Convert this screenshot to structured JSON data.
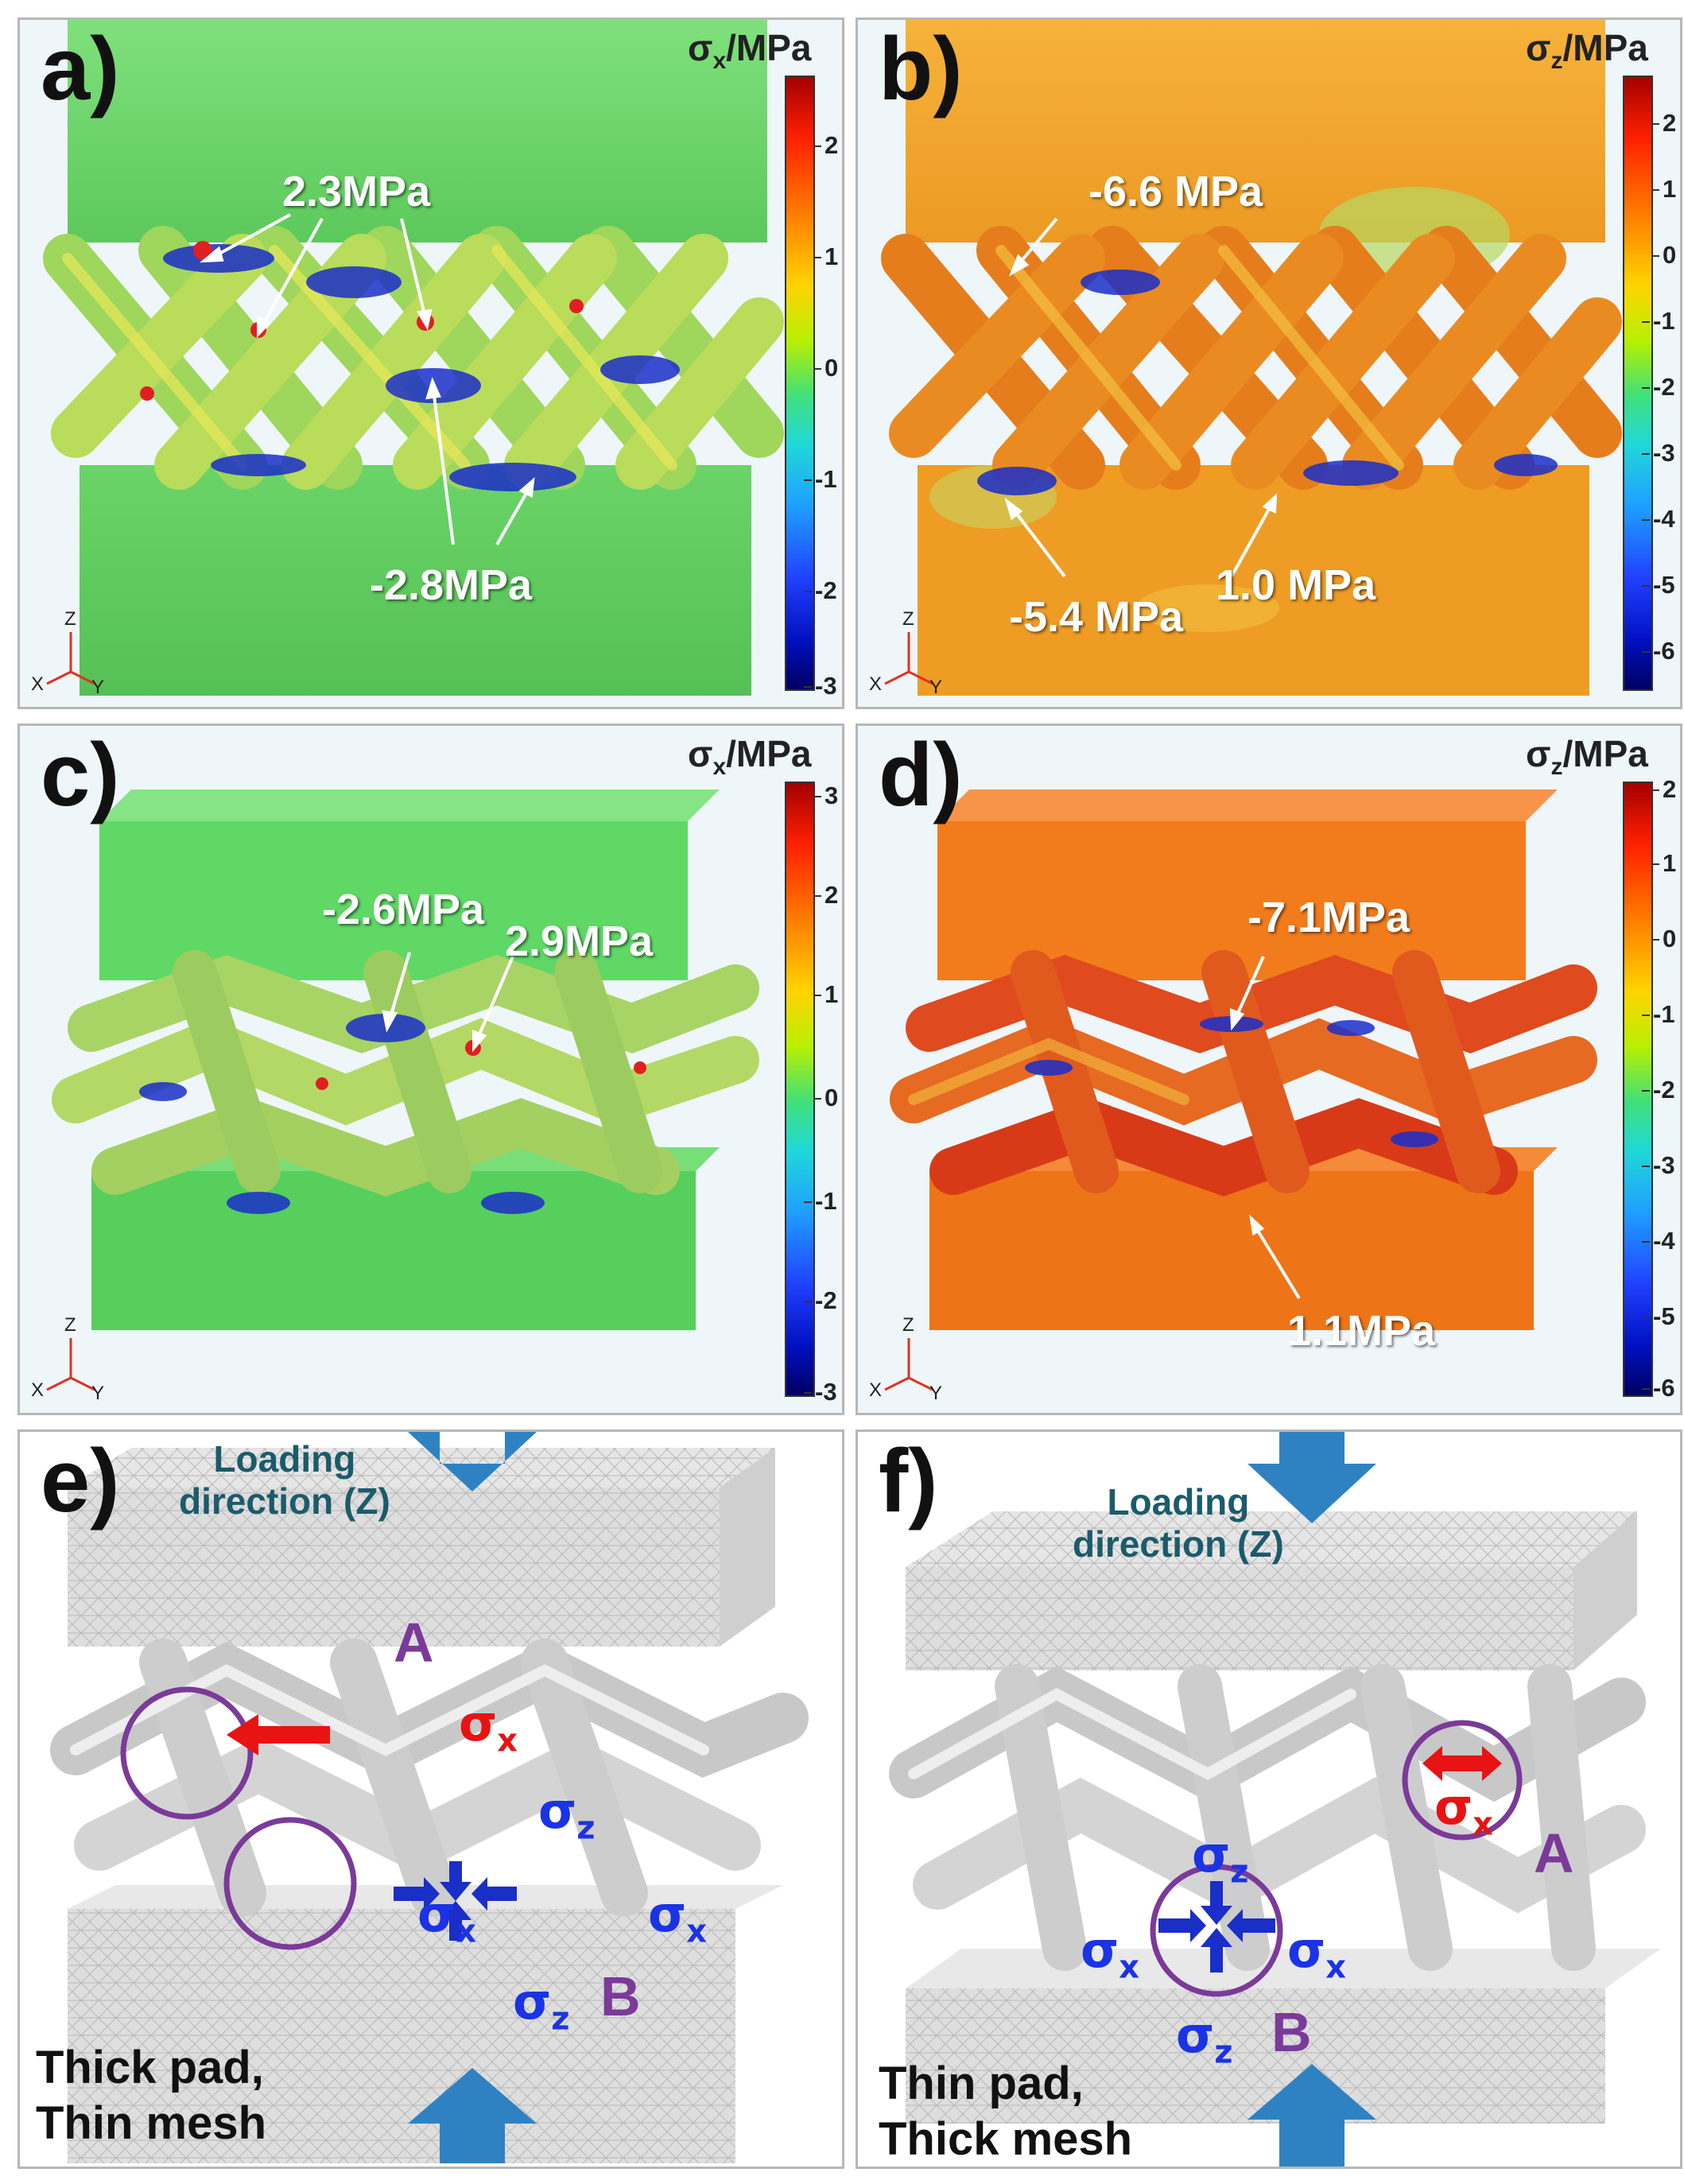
{
  "panels": [
    {
      "label": "a)",
      "colorbar_title": "σx/MPa",
      "colorbar_base": "σ",
      "colorbar_sub": "x",
      "colorbar_unit": "/MPa",
      "colorbar_ticks": [
        "2",
        "1",
        "0",
        "-1",
        "-2",
        "-3"
      ],
      "annotations": [
        "2.3MPa",
        "-2.8MPa"
      ],
      "axes": {
        "z": "Z",
        "x": "X",
        "y": "Y"
      },
      "colors": {
        "top": "#6bd66a",
        "bottom": "#66d064",
        "lattice": "#a3d85a"
      }
    },
    {
      "label": "b)",
      "colorbar_title": "σz/MPa",
      "colorbar_base": "σ",
      "colorbar_sub": "z",
      "colorbar_unit": "/MPa",
      "colorbar_ticks": [
        "2",
        "1",
        "0",
        "-1",
        "-2",
        "-3",
        "-4",
        "-5",
        "-6"
      ],
      "annotations": [
        "-6.6 MPa",
        "-5.4 MPa",
        "1.0 MPa"
      ],
      "axes": {
        "z": "Z",
        "x": "X",
        "y": "Y"
      },
      "colors": {
        "top": "#f2a327",
        "bottom": "#ee9a22",
        "lattice": "#e8771c"
      }
    },
    {
      "label": "c)",
      "colorbar_title": "σx/MPa",
      "colorbar_base": "σ",
      "colorbar_sub": "x",
      "colorbar_unit": "/MPa",
      "colorbar_ticks": [
        "3",
        "2",
        "1",
        "0",
        "-1",
        "-2",
        "-3"
      ],
      "annotations": [
        "-2.6MPa",
        "2.9MPa"
      ],
      "axes": {
        "z": "Z",
        "x": "X",
        "y": "Y"
      },
      "colors": {
        "top": "#5fd866",
        "bottom": "#58d05e",
        "lattice": "#9fd360"
      }
    },
    {
      "label": "d)",
      "colorbar_title": "σz/MPa",
      "colorbar_base": "σ",
      "colorbar_sub": "z",
      "colorbar_unit": "/MPa",
      "colorbar_ticks": [
        "2",
        "1",
        "0",
        "-1",
        "-2",
        "-3",
        "-4",
        "-5",
        "-6"
      ],
      "annotations": [
        "-7.1MPa",
        "1.1MPa"
      ],
      "axes": {
        "z": "Z",
        "x": "X",
        "y": "Y"
      },
      "colors": {
        "top": "#f27b1c",
        "bottom": "#ee7418",
        "lattice": "#de3a18"
      }
    },
    {
      "label": "e)",
      "loading": [
        "Loading",
        "direction (Z)"
      ],
      "circle_a": "A",
      "circle_b": "B",
      "sigma_x": "σx",
      "sigma_z": "σz",
      "sigma_base": "σ",
      "sub_x": "x",
      "sub_z": "z",
      "pad_text": [
        "Thick pad,",
        "Thin mesh"
      ],
      "colors": {
        "arrow": "#2f82c2",
        "circle": "#7b3a99",
        "mesh": "#dcdcdc"
      }
    },
    {
      "label": "f)",
      "loading": [
        "Loading",
        "direction (Z)"
      ],
      "circle_a": "A",
      "circle_b": "B",
      "sigma_x": "σx",
      "sigma_z": "σz",
      "sigma_base": "σ",
      "sub_x": "x",
      "sub_z": "z",
      "pad_text": [
        "Thin pad,",
        "Thick mesh"
      ],
      "colors": {
        "arrow": "#2f82c2",
        "circle": "#7b3a99",
        "mesh": "#dcdcdc"
      }
    }
  ]
}
